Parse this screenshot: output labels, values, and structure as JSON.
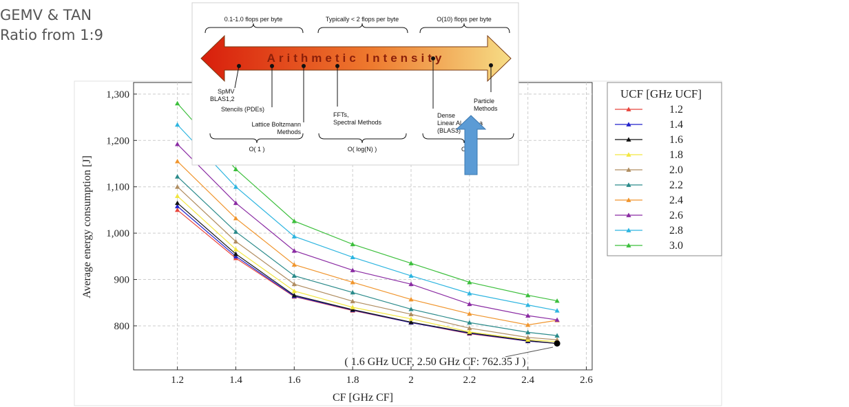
{
  "slide": {
    "title_line1": "GEMV & TAN",
    "title_line2": "Ratio from 1:9"
  },
  "chart_data": {
    "type": "line",
    "xlabel": "CF [GHz CF]",
    "ylabel": "Average energy consumption [J]",
    "xlim": [
      1.05,
      2.62
    ],
    "ylim": [
      705,
      1325
    ],
    "xticks": [
      "1.2",
      "1.4",
      "1.6",
      "1.8",
      "2",
      "2.2",
      "2.4",
      "2.6"
    ],
    "yticks": [
      "800",
      "900",
      "1,000",
      "1,100",
      "1,200",
      "1,300"
    ],
    "grid": true,
    "legend_position": "right",
    "legend_title": "UCF [GHz UCF]",
    "x": [
      1.2,
      1.4,
      1.6,
      1.8,
      2.0,
      2.2,
      2.4,
      2.5
    ],
    "series": [
      {
        "name": "1.2",
        "color": "#e8453c",
        "values": [
          1050,
          946,
          863,
          833,
          807,
          783,
          767,
          762
        ]
      },
      {
        "name": "1.4",
        "color": "#2222cc",
        "values": [
          1058,
          950,
          864,
          834,
          807,
          784,
          767,
          762
        ]
      },
      {
        "name": "1.6",
        "color": "#111111",
        "values": [
          1065,
          955,
          866,
          835,
          808,
          785,
          768,
          762
        ]
      },
      {
        "name": "1.8",
        "color": "#f2e640",
        "values": [
          1080,
          965,
          875,
          840,
          815,
          787,
          770,
          766
        ]
      },
      {
        "name": "2.0",
        "color": "#b08d60",
        "values": [
          1100,
          982,
          890,
          853,
          825,
          795,
          775,
          770
        ]
      },
      {
        "name": "2.2",
        "color": "#2a8a8a",
        "values": [
          1122,
          1003,
          908,
          872,
          836,
          807,
          786,
          779
        ]
      },
      {
        "name": "2.4",
        "color": "#f0952d",
        "values": [
          1155,
          1032,
          932,
          894,
          857,
          826,
          802,
          812
        ]
      },
      {
        "name": "2.6",
        "color": "#8a2ba3",
        "values": [
          1192,
          1065,
          962,
          920,
          890,
          847,
          822,
          813
        ]
      },
      {
        "name": "2.8",
        "color": "#2eb5e0",
        "values": [
          1234,
          1100,
          993,
          948,
          908,
          870,
          845,
          833
        ]
      },
      {
        "name": "3.0",
        "color": "#3cbf3c",
        "values": [
          1280,
          1138,
          1026,
          976,
          935,
          894,
          866,
          854
        ]
      }
    ],
    "annotation": "( 1.6 GHz UCF, 2.50 GHz CF: 762.35 J )"
  },
  "overlay": {
    "brace_top_1": "0.1-1.0 flops per byte",
    "brace_top_2": "Typically < 2 flops per byte",
    "brace_top_3": "O(10) flops per byte",
    "arrow_label": "Arithmetic Intensity",
    "spmv_line1": "SpMV",
    "spmv_line2": "BLAS1,2",
    "stencils": "Stencils (PDEs)",
    "lattice_line1": "Lattice Boltzmann",
    "lattice_line2": "Methods",
    "ffts_line1": "FFTs,",
    "ffts_line2": "Spectral Methods",
    "dense_line1": "Dense",
    "dense_line2": "Linear Al",
    "dense_line2b": "a",
    "dense_line3": "(BLAS3)",
    "particle_line1": "Particle",
    "particle_line2": "Methods",
    "brace_bottom_1": "O( 1 )",
    "brace_bottom_2": "O( log(N) )",
    "brace_bottom_3": "O"
  }
}
